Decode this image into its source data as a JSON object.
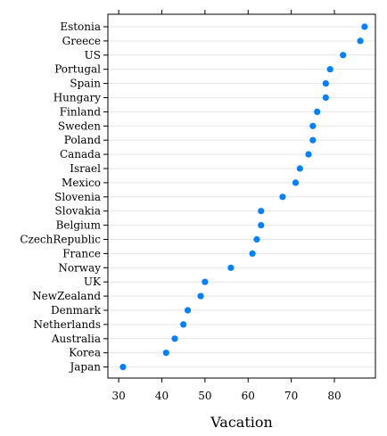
{
  "chart_data": {
    "type": "scatter",
    "title": "",
    "xlabel": "Vacation",
    "ylabel": "",
    "xlim": [
      27.5,
      89.5
    ],
    "x_ticks": [
      30,
      40,
      50,
      60,
      70,
      80
    ],
    "grid": true,
    "point_color": "#0080ff",
    "categories": [
      "Estonia",
      "Greece",
      "US",
      "Portugal",
      "Spain",
      "Hungary",
      "Finland",
      "Sweden",
      "Poland",
      "Canada",
      "Israel",
      "Mexico",
      "Slovenia",
      "Slovakia",
      "Belgium",
      "CzechRepublic",
      "France",
      "Norway",
      "UK",
      "NewZealand",
      "Denmark",
      "Netherlands",
      "Australia",
      "Korea",
      "Japan"
    ],
    "values": [
      87,
      86,
      82,
      79,
      78,
      78,
      76,
      75,
      75,
      74,
      72,
      71,
      68,
      63,
      63,
      62,
      61,
      56,
      50,
      49,
      46,
      45,
      43,
      41,
      31
    ]
  }
}
